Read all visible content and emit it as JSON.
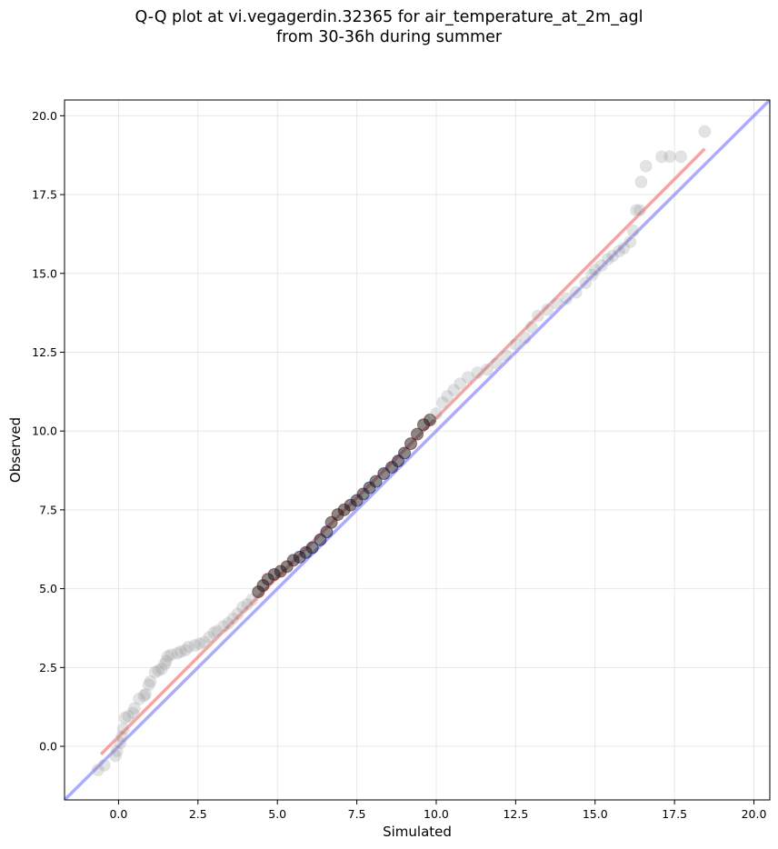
{
  "chart_data": {
    "type": "scatter",
    "title_line1": "Q-Q plot at vi.vegagerdin.32365 for air_temperature_at_2m_agl",
    "title_line2": "from 30-36h during summer",
    "xlabel": "Simulated",
    "ylabel": "Observed",
    "xlim": [
      -1.7,
      20.5
    ],
    "ylim": [
      -1.7,
      20.5
    ],
    "x_ticks": [
      0.0,
      2.5,
      5.0,
      7.5,
      10.0,
      12.5,
      15.0,
      17.5,
      20.0
    ],
    "x_tick_labels": [
      "0.0",
      "2.5",
      "5.0",
      "7.5",
      "10.0",
      "12.5",
      "15.0",
      "17.5",
      "20.0"
    ],
    "y_ticks": [
      0.0,
      2.5,
      5.0,
      7.5,
      10.0,
      12.5,
      15.0,
      17.5,
      20.0
    ],
    "y_tick_labels": [
      "0.0",
      "2.5",
      "5.0",
      "7.5",
      "10.0",
      "12.5",
      "15.0",
      "17.5",
      "20.0"
    ],
    "grid": true,
    "identity_line": {
      "x": [
        -1.7,
        20.5
      ],
      "y": [
        -1.7,
        20.5
      ],
      "color": "#8080ff"
    },
    "fit_line": {
      "x": [
        -0.55,
        18.45
      ],
      "y": [
        -0.25,
        18.95
      ],
      "color": "#f08080"
    },
    "colors": {
      "tail_points": "#d3d3d3",
      "core_points": "#141414",
      "core_edge_low": "#1a1a66",
      "core_edge_high": "#661a1a"
    },
    "series": [
      {
        "points": [
          [
            -0.65,
            -0.75
          ],
          [
            -0.45,
            -0.6
          ],
          [
            -0.1,
            -0.3
          ],
          [
            -0.05,
            -0.15
          ],
          [
            0.05,
            0.1
          ],
          [
            0.1,
            0.3
          ],
          [
            0.15,
            0.55
          ],
          [
            0.2,
            0.9
          ],
          [
            0.3,
            0.95
          ],
          [
            0.45,
            1.05
          ],
          [
            0.5,
            1.2
          ],
          [
            0.65,
            1.5
          ],
          [
            0.8,
            1.6
          ],
          [
            0.85,
            1.65
          ],
          [
            0.95,
            1.95
          ],
          [
            1.0,
            2.05
          ],
          [
            1.15,
            2.35
          ],
          [
            1.25,
            2.4
          ],
          [
            1.35,
            2.45
          ],
          [
            1.45,
            2.6
          ],
          [
            1.5,
            2.7
          ],
          [
            1.55,
            2.85
          ],
          [
            1.65,
            2.9
          ],
          [
            1.85,
            2.95
          ],
          [
            1.95,
            3.0
          ],
          [
            2.1,
            3.05
          ],
          [
            2.2,
            3.15
          ],
          [
            2.4,
            3.2
          ],
          [
            2.55,
            3.25
          ],
          [
            2.7,
            3.3
          ],
          [
            2.85,
            3.45
          ],
          [
            3.0,
            3.6
          ],
          [
            3.1,
            3.65
          ],
          [
            3.3,
            3.8
          ],
          [
            3.45,
            3.9
          ],
          [
            3.6,
            4.05
          ],
          [
            3.75,
            4.2
          ],
          [
            3.9,
            4.4
          ],
          [
            4.05,
            4.5
          ],
          [
            4.2,
            4.65
          ],
          [
            4.4,
            4.9
          ],
          [
            4.55,
            5.1
          ],
          [
            4.7,
            5.3
          ],
          [
            4.9,
            5.45
          ],
          [
            5.1,
            5.55
          ],
          [
            5.3,
            5.7
          ],
          [
            5.5,
            5.9
          ],
          [
            5.7,
            6.0
          ],
          [
            5.9,
            6.15
          ],
          [
            6.1,
            6.3
          ],
          [
            6.35,
            6.55
          ],
          [
            6.55,
            6.8
          ],
          [
            6.7,
            7.1
          ],
          [
            6.9,
            7.35
          ],
          [
            7.1,
            7.5
          ],
          [
            7.3,
            7.65
          ],
          [
            7.5,
            7.8
          ],
          [
            7.7,
            8.0
          ],
          [
            7.9,
            8.2
          ],
          [
            8.1,
            8.4
          ],
          [
            8.35,
            8.65
          ],
          [
            8.6,
            8.85
          ],
          [
            8.8,
            9.05
          ],
          [
            9.0,
            9.3
          ],
          [
            9.2,
            9.6
          ],
          [
            9.4,
            9.9
          ],
          [
            9.6,
            10.2
          ],
          [
            9.8,
            10.35
          ],
          [
            10.0,
            10.55
          ],
          [
            10.2,
            10.9
          ],
          [
            10.35,
            11.1
          ],
          [
            10.55,
            11.3
          ],
          [
            10.75,
            11.5
          ],
          [
            11.0,
            11.7
          ],
          [
            11.3,
            11.85
          ],
          [
            11.6,
            11.95
          ],
          [
            11.9,
            12.15
          ],
          [
            12.2,
            12.4
          ],
          [
            12.5,
            12.75
          ],
          [
            12.8,
            12.95
          ],
          [
            13.0,
            13.3
          ],
          [
            13.2,
            13.65
          ],
          [
            13.5,
            13.85
          ],
          [
            13.8,
            14.05
          ],
          [
            14.1,
            14.2
          ],
          [
            14.4,
            14.4
          ],
          [
            14.7,
            14.7
          ],
          [
            14.9,
            14.95
          ],
          [
            15.0,
            15.1
          ],
          [
            15.2,
            15.25
          ],
          [
            15.4,
            15.45
          ],
          [
            15.55,
            15.55
          ],
          [
            15.75,
            15.7
          ],
          [
            15.9,
            15.8
          ],
          [
            16.1,
            16.0
          ],
          [
            16.2,
            16.35
          ],
          [
            16.3,
            17.0
          ],
          [
            16.4,
            17.0
          ],
          [
            16.45,
            17.9
          ],
          [
            16.6,
            18.4
          ],
          [
            17.1,
            18.7
          ],
          [
            17.35,
            18.7
          ],
          [
            17.7,
            18.7
          ],
          [
            18.45,
            19.5
          ]
        ]
      }
    ]
  }
}
